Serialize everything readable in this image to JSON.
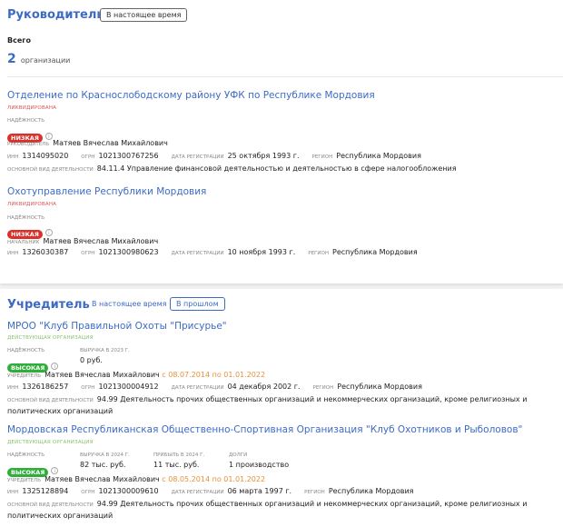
{
  "manager": {
    "title": "Руководитель",
    "filter_current": "В настоящее время",
    "total_label": "Всего",
    "count": "2",
    "count_unit": "организации",
    "orgs": [
      {
        "name": "Отделение по Краснослободскому району УФК по Республике Мордовия",
        "status": "Ликвидирована",
        "reliability_label": "Надёжность",
        "reliability": "Низкая",
        "role_label": "Руководитель",
        "person": "Матяев Вячеслав Михайлович",
        "inn_label": "ИНН",
        "inn": "1314095020",
        "ogrn_label": "ОГРН",
        "ogrn": "1021300767256",
        "reg_label": "Дата регистрации",
        "reg_date": "25 октября 1993 г.",
        "region_label": "Регион",
        "region": "Республика Мордовия",
        "activity_label": "Основной вид деятельности",
        "activity": "84.11.4 Управление финансовой деятельностью и деятельностью в сфере налогообложения"
      },
      {
        "name": "Охотуправление Республики Мордовия",
        "status": "Ликвидирована",
        "reliability_label": "Надёжность",
        "reliability": "Низкая",
        "role_label": "Начальник",
        "person": "Матяев Вячеслав Михайлович",
        "inn_label": "ИНН",
        "inn": "1326030387",
        "ogrn_label": "ОГРН",
        "ogrn": "1021300980623",
        "reg_label": "Дата регистрации",
        "reg_date": "10 ноября 1993 г.",
        "region_label": "Регион",
        "region": "Республика Мордовия"
      }
    ]
  },
  "founder": {
    "title": "Учредитель",
    "filter_current": "В настоящее время",
    "filter_past": "В прошлом",
    "orgs": [
      {
        "name": "МРОО \"Клуб Правильной Охоты \"Присурье\"",
        "status": "Действующая организация",
        "reliability_label": "Надёжность",
        "reliability": "Высокая",
        "revenue_label": "Выручка в 2023 г.",
        "revenue": "0 руб.",
        "role_label": "Учредитель",
        "person": "Матяев Вячеслав Михайлович",
        "period": "с 08.07.2014 по 01.01.2022",
        "inn_label": "ИНН",
        "inn": "1326186257",
        "ogrn_label": "ОГРН",
        "ogrn": "1021300004912",
        "reg_label": "Дата регистрации",
        "reg_date": "04 декабря 2002 г.",
        "region_label": "Регион",
        "region": "Республика Мордовия",
        "activity_label": "Основной вид деятельности",
        "activity": "94.99 Деятельность прочих общественных организаций и некоммерческих организаций, кроме религиозных и политических организаций"
      },
      {
        "name": "Мордовская Республиканская Общественно-Спортивная Организация \"Клуб Охотников и Рыболовов\"",
        "status": "Действующая организация",
        "reliability_label": "Надёжность",
        "reliability": "Высокая",
        "revenue_label": "Выручка в 2024 г.",
        "revenue": "82 тыс. руб.",
        "profit_label": "Прибыль в 2024 г.",
        "profit": "11 тыс. руб.",
        "debts_label": "Долги",
        "debts": "1 производство",
        "role_label": "Учредитель",
        "person": "Матяев Вячеслав Михайлович",
        "period": "с 08.05.2014 по 01.01.2022",
        "inn_label": "ИНН",
        "inn": "1325128894",
        "ogrn_label": "ОГРН",
        "ogrn": "1021300009610",
        "reg_label": "Дата регистрации",
        "reg_date": "06 марта 1997 г.",
        "region_label": "Регион",
        "region": "Республика Мордовия",
        "activity_label": "Основной вид деятельности",
        "activity": "94.99 Деятельность прочих общественных организаций и некоммерческих организаций, кроме религиозных и политических организаций"
      }
    ]
  }
}
